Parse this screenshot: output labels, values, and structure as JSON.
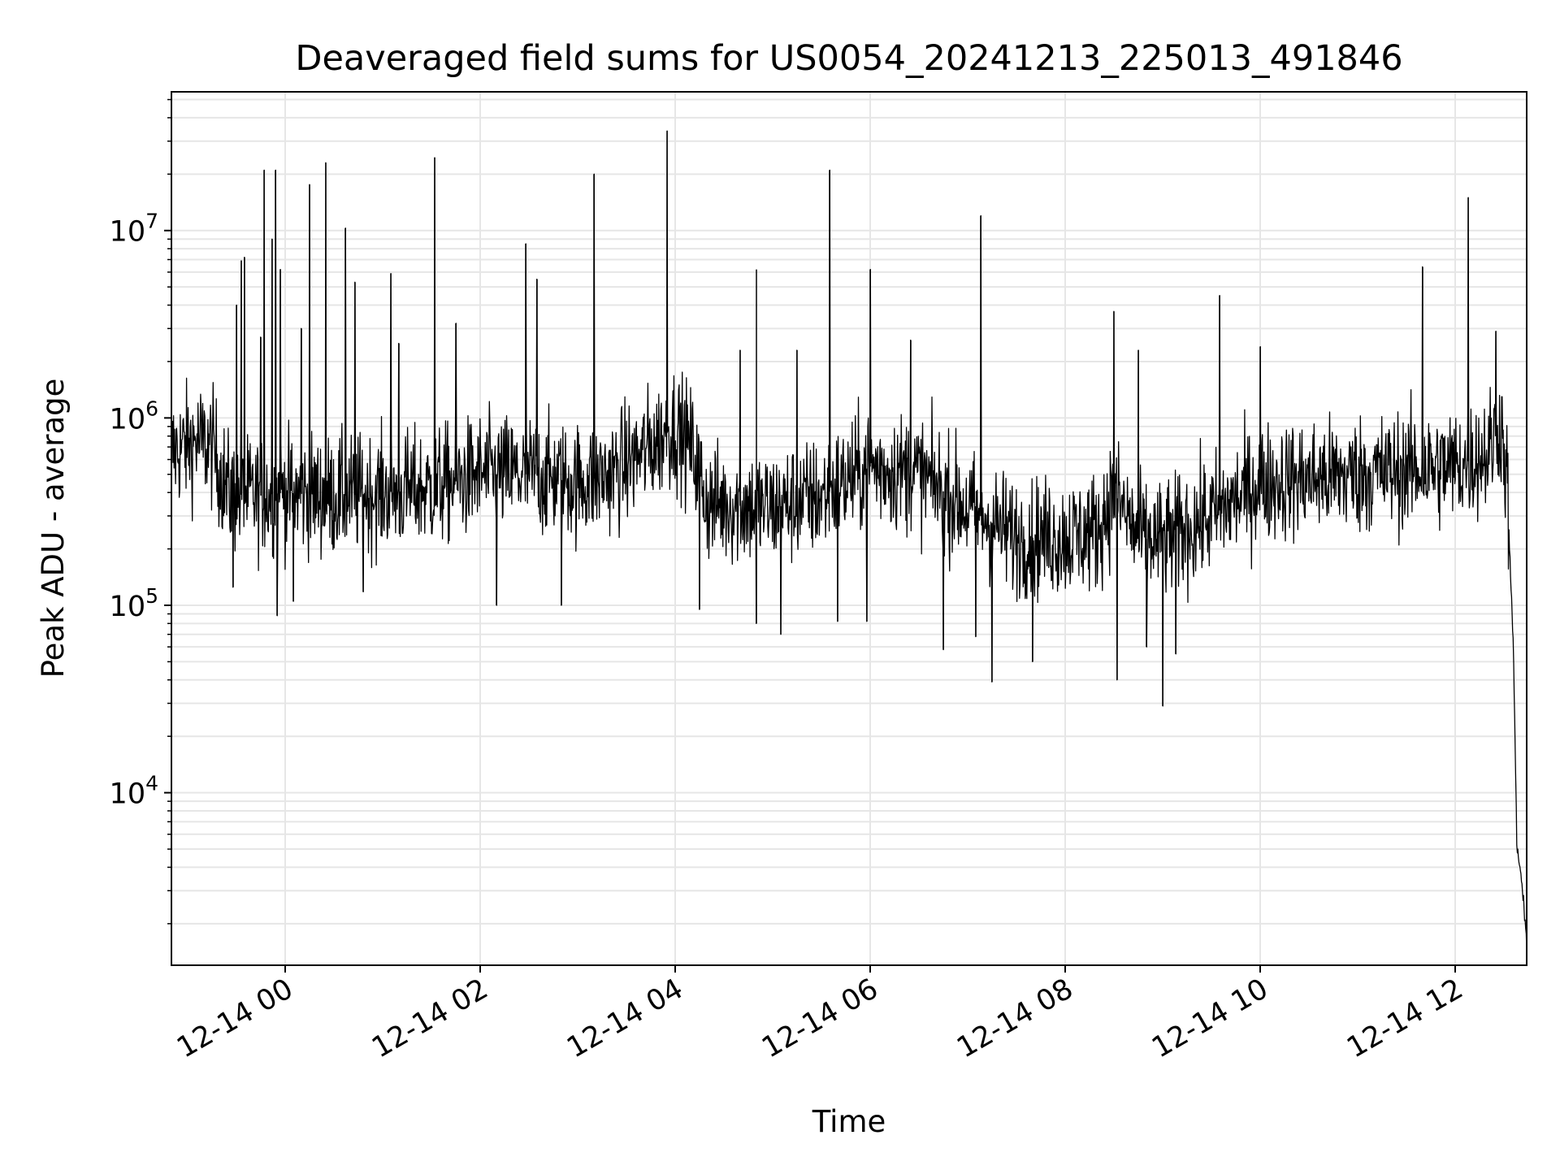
{
  "chart_data": {
    "type": "line",
    "title": "Deaveraged field sums for US0054_20241213_225013_491846",
    "xlabel": "Time",
    "ylabel": "Peak ADU - average",
    "y_scale": "log",
    "ylim": [
      1200,
      55000000
    ],
    "xlim": [
      "2024-12-13 22:50",
      "2024-12-14 12:44"
    ],
    "x_ticks": [
      "12-14 00",
      "12-14 02",
      "12-14 04",
      "12-14 06",
      "12-14 08",
      "12-14 10",
      "12-14 12"
    ],
    "x_tick_times": [
      "2024-12-14 00:00",
      "2024-12-14 02:00",
      "2024-12-14 04:00",
      "2024-12-14 06:00",
      "2024-12-14 08:00",
      "2024-12-14 10:00",
      "2024-12-14 12:00"
    ],
    "y_ticks": [
      {
        "base": "10",
        "exp": "4",
        "value": 10000
      },
      {
        "base": "10",
        "exp": "5",
        "value": 100000
      },
      {
        "base": "10",
        "exp": "6",
        "value": 1000000
      },
      {
        "base": "10",
        "exp": "7",
        "value": 10000000
      }
    ],
    "grid": true,
    "line_color": "#000000",
    "grid_color": "#e6e6e6",
    "series": [
      {
        "name": "",
        "baseline": [
          [
            "2024-12-13 22:50",
            650000
          ],
          [
            "2024-12-13 23:05",
            750000
          ],
          [
            "2024-12-13 23:15",
            700000
          ],
          [
            "2024-12-13 23:25",
            400000
          ],
          [
            "2024-12-13 23:40",
            380000
          ],
          [
            "2024-12-14 00:00",
            400000
          ],
          [
            "2024-12-14 00:30",
            380000
          ],
          [
            "2024-12-14 01:00",
            400000
          ],
          [
            "2024-12-14 01:30",
            420000
          ],
          [
            "2024-12-14 02:00",
            500000
          ],
          [
            "2024-12-14 02:30",
            500000
          ],
          [
            "2024-12-14 03:00",
            450000
          ],
          [
            "2024-12-14 03:20",
            500000
          ],
          [
            "2024-12-14 03:40",
            650000
          ],
          [
            "2024-12-14 04:00",
            900000
          ],
          [
            "2024-12-14 04:10",
            700000
          ],
          [
            "2024-12-14 04:20",
            350000
          ],
          [
            "2024-12-14 05:00",
            330000
          ],
          [
            "2024-12-14 05:30",
            380000
          ],
          [
            "2024-12-14 06:00",
            550000
          ],
          [
            "2024-12-14 06:30",
            500000
          ],
          [
            "2024-12-14 07:00",
            330000
          ],
          [
            "2024-12-14 07:30",
            230000
          ],
          [
            "2024-12-14 08:00",
            230000
          ],
          [
            "2024-12-14 08:20",
            250000
          ],
          [
            "2024-12-14 08:30",
            400000
          ],
          [
            "2024-12-14 08:45",
            230000
          ],
          [
            "2024-12-14 09:00",
            220000
          ],
          [
            "2024-12-14 09:30",
            300000
          ],
          [
            "2024-12-14 10:00",
            450000
          ],
          [
            "2024-12-14 11:00",
            500000
          ],
          [
            "2024-12-14 12:00",
            550000
          ],
          [
            "2024-12-14 12:20",
            650000
          ],
          [
            "2024-12-14 12:28",
            950000
          ],
          [
            "2024-12-14 12:32",
            450000
          ],
          [
            "2024-12-14 12:36",
            50000
          ],
          [
            "2024-12-14 12:38",
            5000
          ],
          [
            "2024-12-14 12:40",
            4000
          ],
          [
            "2024-12-14 12:42",
            2500
          ],
          [
            "2024-12-14 12:44",
            1600
          ]
        ],
        "spikes": [
          [
            "2024-12-13 23:30",
            4000000
          ],
          [
            "2024-12-13 23:33",
            6900000
          ],
          [
            "2024-12-13 23:35",
            7200000
          ],
          [
            "2024-12-13 23:45",
            2700000
          ],
          [
            "2024-12-13 23:47",
            21000000
          ],
          [
            "2024-12-13 23:52",
            9000000
          ],
          [
            "2024-12-13 23:54",
            21000000
          ],
          [
            "2024-12-13 23:57",
            6200000
          ],
          [
            "2024-12-14 00:10",
            3000000
          ],
          [
            "2024-12-14 00:15",
            17600000
          ],
          [
            "2024-12-14 00:25",
            23000000
          ],
          [
            "2024-12-14 00:37",
            10300000
          ],
          [
            "2024-12-14 00:43",
            5300000
          ],
          [
            "2024-12-14 01:05",
            5900000
          ],
          [
            "2024-12-14 01:10",
            2500000
          ],
          [
            "2024-12-14 01:32",
            24500000
          ],
          [
            "2024-12-14 01:45",
            3200000
          ],
          [
            "2024-12-14 02:28",
            8500000
          ],
          [
            "2024-12-14 02:35",
            5500000
          ],
          [
            "2024-12-14 03:10",
            20000000
          ],
          [
            "2024-12-14 03:55",
            34000000
          ],
          [
            "2024-12-14 04:40",
            2300000
          ],
          [
            "2024-12-14 04:50",
            6200000
          ],
          [
            "2024-12-14 05:15",
            2300000
          ],
          [
            "2024-12-14 05:35",
            21000000
          ],
          [
            "2024-12-14 06:00",
            6200000
          ],
          [
            "2024-12-14 06:25",
            2600000
          ],
          [
            "2024-12-14 07:08",
            12000000
          ],
          [
            "2024-12-14 08:30",
            3700000
          ],
          [
            "2024-12-14 08:45",
            2300000
          ],
          [
            "2024-12-14 09:35",
            4500000
          ],
          [
            "2024-12-14 10:00",
            2400000
          ],
          [
            "2024-12-14 11:40",
            6400000
          ],
          [
            "2024-12-14 12:08",
            15000000
          ],
          [
            "2024-12-14 12:25",
            2900000
          ]
        ],
        "dips": [
          [
            "2024-12-13 23:28",
            125000
          ],
          [
            "2024-12-13 23:55",
            88000
          ],
          [
            "2024-12-14 00:05",
            105000
          ],
          [
            "2024-12-14 00:48",
            118000
          ],
          [
            "2024-12-14 02:10",
            100000
          ],
          [
            "2024-12-14 02:50",
            100000
          ],
          [
            "2024-12-14 04:15",
            95000
          ],
          [
            "2024-12-14 04:50",
            80000
          ],
          [
            "2024-12-14 05:05",
            70000
          ],
          [
            "2024-12-14 05:40",
            82000
          ],
          [
            "2024-12-14 05:58",
            82000
          ],
          [
            "2024-12-14 06:45",
            58000
          ],
          [
            "2024-12-14 07:05",
            68000
          ],
          [
            "2024-12-14 07:15",
            39000
          ],
          [
            "2024-12-14 07:40",
            50000
          ],
          [
            "2024-12-14 08:32",
            40000
          ],
          [
            "2024-12-14 08:50",
            60000
          ],
          [
            "2024-12-14 09:00",
            29000
          ],
          [
            "2024-12-14 09:08",
            55000
          ]
        ]
      }
    ]
  }
}
